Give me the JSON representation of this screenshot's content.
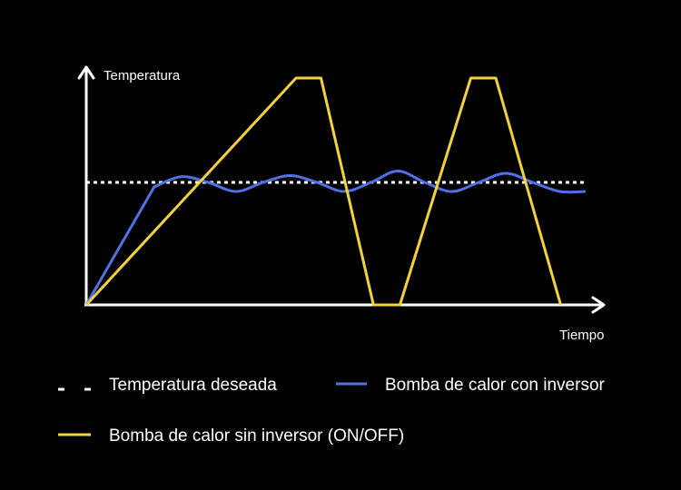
{
  "chart_data": {
    "type": "line",
    "title": "",
    "xlabel": "Tiempo",
    "ylabel": "Temperatura",
    "xlim": [
      0,
      100
    ],
    "ylim": [
      0,
      100
    ],
    "grid": false,
    "legend_placement": "bottom",
    "series": [
      {
        "name": "Temperatura deseada",
        "style": "dotted",
        "color": "#ffffff",
        "x": [
          0,
          100
        ],
        "y": [
          54,
          54
        ]
      },
      {
        "name": "Bomba de calor con inversor",
        "style": "solid",
        "color": "#4f72e6",
        "x": [
          0,
          13.6,
          19.0,
          24.4,
          30.0,
          35.4,
          40.8,
          46.2,
          51.6,
          57.0,
          62.4,
          67.8,
          73.2,
          78.6,
          84.0,
          89.4,
          94.8,
          100
        ],
        "y": [
          0,
          52,
          56.5,
          54.0,
          50.0,
          54.0,
          57.0,
          54.0,
          50.0,
          54.0,
          59.0,
          54.0,
          50.0,
          54.0,
          58.0,
          54.0,
          50.0,
          50.0
        ]
      },
      {
        "name": "Bomba de calor sin inversor (ON/OFF)",
        "style": "solid",
        "color": "#f3d23d",
        "x": [
          0,
          42.0,
          47.0,
          57.5,
          62.8,
          77.0,
          82.0,
          95.0
        ],
        "y": [
          0,
          100,
          100,
          0,
          0,
          100,
          100,
          0
        ]
      }
    ]
  },
  "legend": {
    "items": [
      {
        "label": "Temperatura deseada",
        "color": "#ffffff",
        "marker": "dashed"
      },
      {
        "label": "Bomba de calor con inversor",
        "color": "#4f72e6",
        "marker": "solid"
      },
      {
        "label": "Bomba de calor sin inversor (ON/OFF)",
        "color": "#f3d23d",
        "marker": "solid"
      }
    ]
  }
}
